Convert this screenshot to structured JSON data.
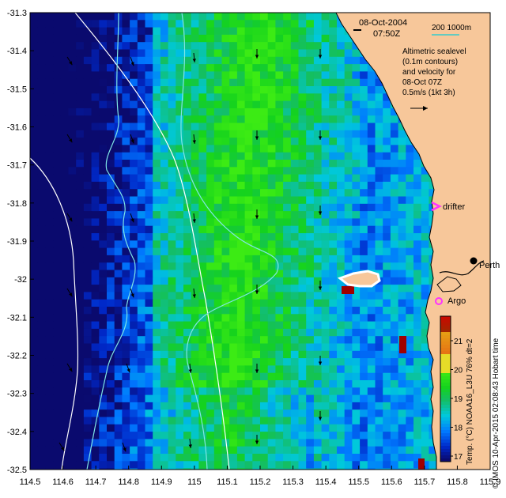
{
  "header": {
    "date": "08-Oct-2004",
    "time": "07:50Z",
    "scale_label": "200  1000m"
  },
  "legend": {
    "line1": "Altimetric sealevel",
    "line2": "(0.1m contours)",
    "line3": "and velocity for",
    "line4": "08-Oct 07Z",
    "line5": "0.5m/s (1kt 3h)"
  },
  "places": {
    "drifter": "drifter",
    "perth": "Perth",
    "argo": "Argo"
  },
  "colorbar": {
    "label": "Temp. (°C) NOAA16_L3U 76% dt=2",
    "ticks": [
      "17",
      "18",
      "19",
      "20",
      "21"
    ]
  },
  "credit": "© IMOS 10-Apr-2015 02:08:43 Hobart time",
  "axes": {
    "x_ticks": [
      "114.5",
      "114.6",
      "114.7",
      "114.8",
      "114.9",
      "115",
      "115.1",
      "115.2",
      "115.3",
      "115.4",
      "115.5",
      "115.6",
      "115.7",
      "115.8",
      "115.9"
    ],
    "y_ticks": [
      "-31.3",
      "-31.4",
      "-31.5",
      "-31.6",
      "-31.7",
      "-31.8",
      "-31.9",
      "-32",
      "-32.1",
      "-32.2",
      "-32.3",
      "-32.4",
      "-32.5"
    ]
  },
  "colors": {
    "land": "#f7c79a",
    "contour": "#ffffff",
    "isobath": "#7fe6e6",
    "drifter": "#ff33ff",
    "argo": "#ff33ff"
  }
}
